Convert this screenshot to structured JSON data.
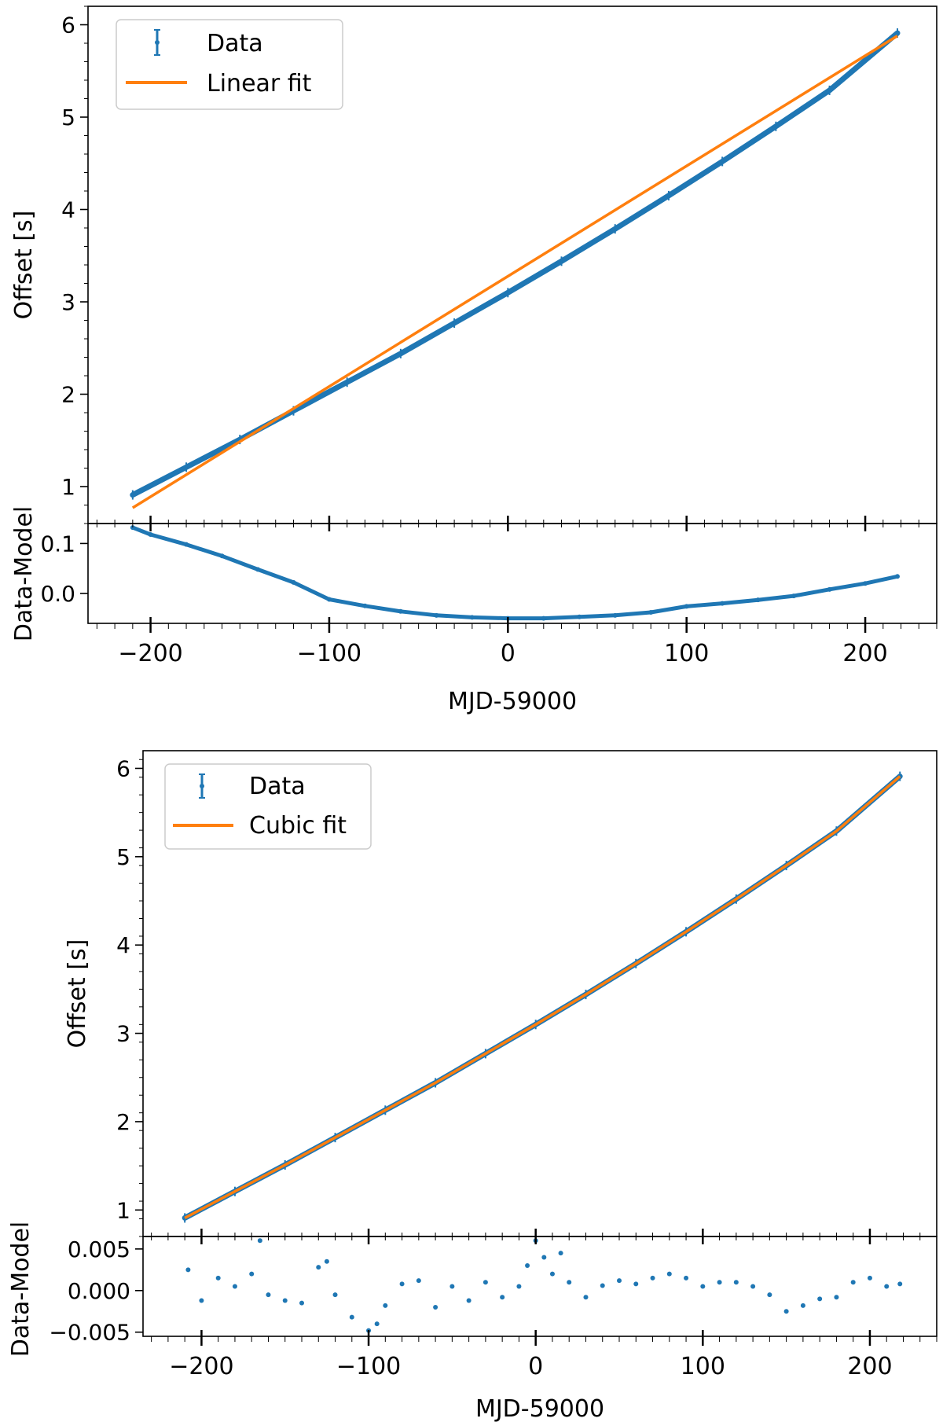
{
  "colors": {
    "data": "#1f77b4",
    "fit": "#ff7f0e",
    "axis": "#000000",
    "legend_border": "#cccccc"
  },
  "chart_data": [
    {
      "type": "scatter",
      "panel": "top",
      "xlabel": "MJD-59000",
      "xlim": [
        -235,
        240
      ],
      "xticks": [
        -200,
        -100,
        0,
        100,
        200
      ],
      "xtick_labels": [
        "−200",
        "−100",
        "0",
        "100",
        "200"
      ],
      "main": {
        "ylabel": "Offset [s]",
        "ylim": [
          0.6,
          6.2
        ],
        "yticks": [
          1,
          2,
          3,
          4,
          5,
          6
        ],
        "ytick_labels": [
          "1",
          "2",
          "3",
          "4",
          "5",
          "6"
        ],
        "legend_position": "top-left",
        "series": [
          {
            "name": "Data",
            "kind": "errorbar",
            "x": [
              -210,
              -180,
              -150,
              -120,
              -90,
              -60,
              -30,
              0,
              30,
              60,
              90,
              120,
              150,
              180,
              218
            ],
            "y": [
              0.91,
              1.21,
              1.51,
              1.82,
              2.13,
              2.44,
              2.77,
              3.1,
              3.44,
              3.79,
              4.15,
              4.52,
              4.9,
              5.29,
              5.91
            ]
          },
          {
            "name": "Linear fit",
            "kind": "line",
            "x": [
              -210,
              218
            ],
            "y": [
              0.77,
              5.88
            ]
          }
        ]
      },
      "residual": {
        "ylabel": "Data-Model",
        "ylim": [
          -0.06,
          0.14
        ],
        "yticks": [
          0.0,
          0.1
        ],
        "ytick_labels": [
          "0.0",
          "0.1"
        ],
        "series": [
          {
            "name": "Data-Model",
            "x": [
              -210,
              -200,
              -180,
              -160,
              -140,
              -120,
              -100,
              -80,
              -60,
              -40,
              -20,
              0,
              20,
              40,
              60,
              80,
              100,
              120,
              140,
              160,
              180,
              200,
              218
            ],
            "y": [
              0.132,
              0.118,
              0.098,
              0.075,
              0.048,
              0.022,
              -0.012,
              -0.025,
              -0.036,
              -0.044,
              -0.048,
              -0.05,
              -0.05,
              -0.047,
              -0.044,
              -0.038,
              -0.026,
              -0.02,
              -0.013,
              -0.005,
              0.008,
              0.02,
              0.034
            ]
          }
        ]
      }
    },
    {
      "type": "scatter",
      "panel": "bottom",
      "xlabel": "MJD-59000",
      "xlim": [
        -235,
        240
      ],
      "xticks": [
        -200,
        -100,
        0,
        100,
        200
      ],
      "xtick_labels": [
        "−200",
        "−100",
        "0",
        "100",
        "200"
      ],
      "main": {
        "ylabel": "Offset [s]",
        "ylim": [
          0.7,
          6.2
        ],
        "yticks": [
          1,
          2,
          3,
          4,
          5,
          6
        ],
        "ytick_labels": [
          "1",
          "2",
          "3",
          "4",
          "5",
          "6"
        ],
        "legend_position": "top-left",
        "series": [
          {
            "name": "Data",
            "kind": "errorbar",
            "x": [
              -210,
              -180,
              -150,
              -120,
              -90,
              -60,
              -30,
              0,
              30,
              60,
              90,
              120,
              150,
              180,
              218
            ],
            "y": [
              0.91,
              1.21,
              1.51,
              1.82,
              2.13,
              2.44,
              2.77,
              3.1,
              3.44,
              3.79,
              4.15,
              4.52,
              4.9,
              5.29,
              5.91
            ]
          },
          {
            "name": "Cubic fit",
            "kind": "line",
            "x": [
              -210,
              -180,
              -150,
              -120,
              -90,
              -60,
              -30,
              0,
              30,
              60,
              90,
              120,
              150,
              180,
              218
            ],
            "y": [
              0.91,
              1.21,
              1.51,
              1.82,
              2.13,
              2.44,
              2.77,
              3.1,
              3.44,
              3.79,
              4.15,
              4.52,
              4.9,
              5.29,
              5.91
            ]
          }
        ]
      },
      "residual": {
        "ylabel": "Data-Model",
        "ylim": [
          -0.0055,
          0.0065
        ],
        "yticks": [
          -0.005,
          0.0,
          0.005
        ],
        "ytick_labels": [
          "−0.005",
          "0.000",
          "0.005"
        ],
        "series": [
          {
            "name": "Data-Model",
            "x": [
              -208,
              -200,
              -190,
              -180,
              -170,
              -165,
              -160,
              -150,
              -140,
              -130,
              -125,
              -120,
              -110,
              -100,
              -95,
              -90,
              -80,
              -70,
              -60,
              -50,
              -40,
              -30,
              -20,
              -10,
              -5,
              0,
              5,
              10,
              15,
              20,
              30,
              40,
              50,
              60,
              70,
              80,
              90,
              100,
              110,
              120,
              130,
              140,
              150,
              160,
              170,
              180,
              190,
              200,
              210,
              218
            ],
            "y": [
              0.0025,
              -0.0012,
              0.0015,
              0.0005,
              0.002,
              0.006,
              -0.0005,
              -0.0012,
              -0.0015,
              0.0028,
              0.0035,
              -0.0005,
              -0.0032,
              -0.0048,
              -0.004,
              -0.0018,
              0.0008,
              0.0012,
              -0.002,
              0.0005,
              -0.0012,
              0.001,
              -0.0008,
              0.0005,
              0.003,
              0.006,
              0.004,
              0.002,
              0.0045,
              0.001,
              -0.0008,
              0.0006,
              0.0012,
              0.0008,
              0.0015,
              0.002,
              0.0015,
              0.0005,
              0.001,
              0.001,
              0.0005,
              -0.0005,
              -0.0025,
              -0.0018,
              -0.001,
              -0.0008,
              0.001,
              0.0015,
              0.0005,
              0.0008
            ]
          }
        ]
      }
    }
  ]
}
